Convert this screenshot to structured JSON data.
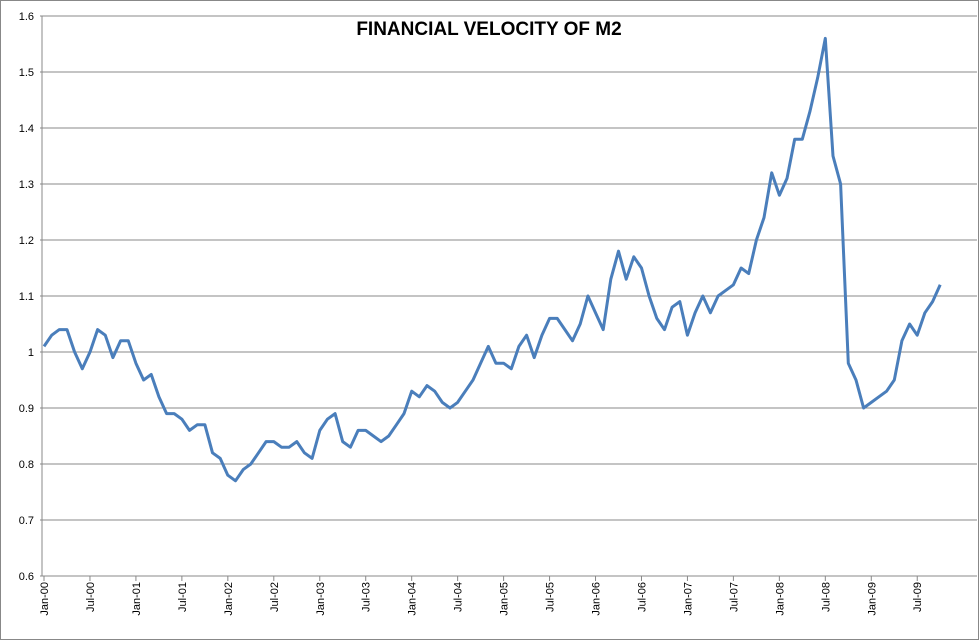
{
  "chart_data": {
    "type": "line",
    "title": "FINANCIAL VELOCITY OF M2",
    "categories": [
      "Jan-00",
      null,
      null,
      null,
      null,
      null,
      "Jul-00",
      null,
      null,
      null,
      null,
      null,
      "Jan-01",
      null,
      null,
      null,
      null,
      null,
      "Jul-01",
      null,
      null,
      null,
      null,
      null,
      "Jan-02",
      null,
      null,
      null,
      null,
      null,
      "Jul-02",
      null,
      null,
      null,
      null,
      null,
      "Jan-03",
      null,
      null,
      null,
      null,
      null,
      "Jul-03",
      null,
      null,
      null,
      null,
      null,
      "Jan-04",
      null,
      null,
      null,
      null,
      null,
      "Jul-04",
      null,
      null,
      null,
      null,
      null,
      "Jan-05",
      null,
      null,
      null,
      null,
      null,
      "Jul-05",
      null,
      null,
      null,
      null,
      null,
      "Jan-06",
      null,
      null,
      null,
      null,
      null,
      "Jul-06",
      null,
      null,
      null,
      null,
      null,
      "Jan-07",
      null,
      null,
      null,
      null,
      null,
      "Jul-07",
      null,
      null,
      null,
      null,
      null,
      "Jan-08",
      null,
      null,
      null,
      null,
      null,
      "Jul-08",
      null,
      null,
      null,
      null,
      null,
      "Jan-09",
      null,
      null,
      null,
      null,
      null,
      "Jul-09",
      null,
      null,
      null
    ],
    "series": [
      {
        "name": "Financial velocity of M2",
        "color": "#4a7ebb",
        "values": [
          1.01,
          1.03,
          1.04,
          1.04,
          1.0,
          0.97,
          1.0,
          1.04,
          1.03,
          0.99,
          1.02,
          1.02,
          0.98,
          0.95,
          0.96,
          0.92,
          0.89,
          0.89,
          0.88,
          0.86,
          0.87,
          0.87,
          0.82,
          0.81,
          0.78,
          0.77,
          0.79,
          0.8,
          0.82,
          0.84,
          0.84,
          0.83,
          0.83,
          0.84,
          0.82,
          0.81,
          0.86,
          0.88,
          0.89,
          0.84,
          0.83,
          0.86,
          0.86,
          0.85,
          0.84,
          0.85,
          0.87,
          0.89,
          0.93,
          0.92,
          0.94,
          0.93,
          0.91,
          0.9,
          0.91,
          0.93,
          0.95,
          0.98,
          1.01,
          0.98,
          0.98,
          0.97,
          1.01,
          1.03,
          0.99,
          1.03,
          1.06,
          1.06,
          1.04,
          1.02,
          1.05,
          1.1,
          1.07,
          1.04,
          1.13,
          1.18,
          1.13,
          1.17,
          1.15,
          1.1,
          1.06,
          1.04,
          1.08,
          1.09,
          1.03,
          1.07,
          1.1,
          1.07,
          1.1,
          1.11,
          1.12,
          1.15,
          1.14,
          1.2,
          1.24,
          1.32,
          1.28,
          1.31,
          1.38,
          1.38,
          1.43,
          1.49,
          1.56,
          1.35,
          1.3,
          0.98,
          0.95,
          0.9,
          0.91,
          0.92,
          0.93,
          0.95,
          1.02,
          1.05,
          1.03,
          1.07,
          1.09,
          1.12
        ]
      }
    ],
    "ylim": [
      0.6,
      1.6
    ],
    "yticks": [
      0.6,
      0.7,
      0.8,
      0.9,
      1,
      1.1,
      1.2,
      1.3,
      1.4,
      1.5,
      1.6
    ],
    "grid": true
  }
}
